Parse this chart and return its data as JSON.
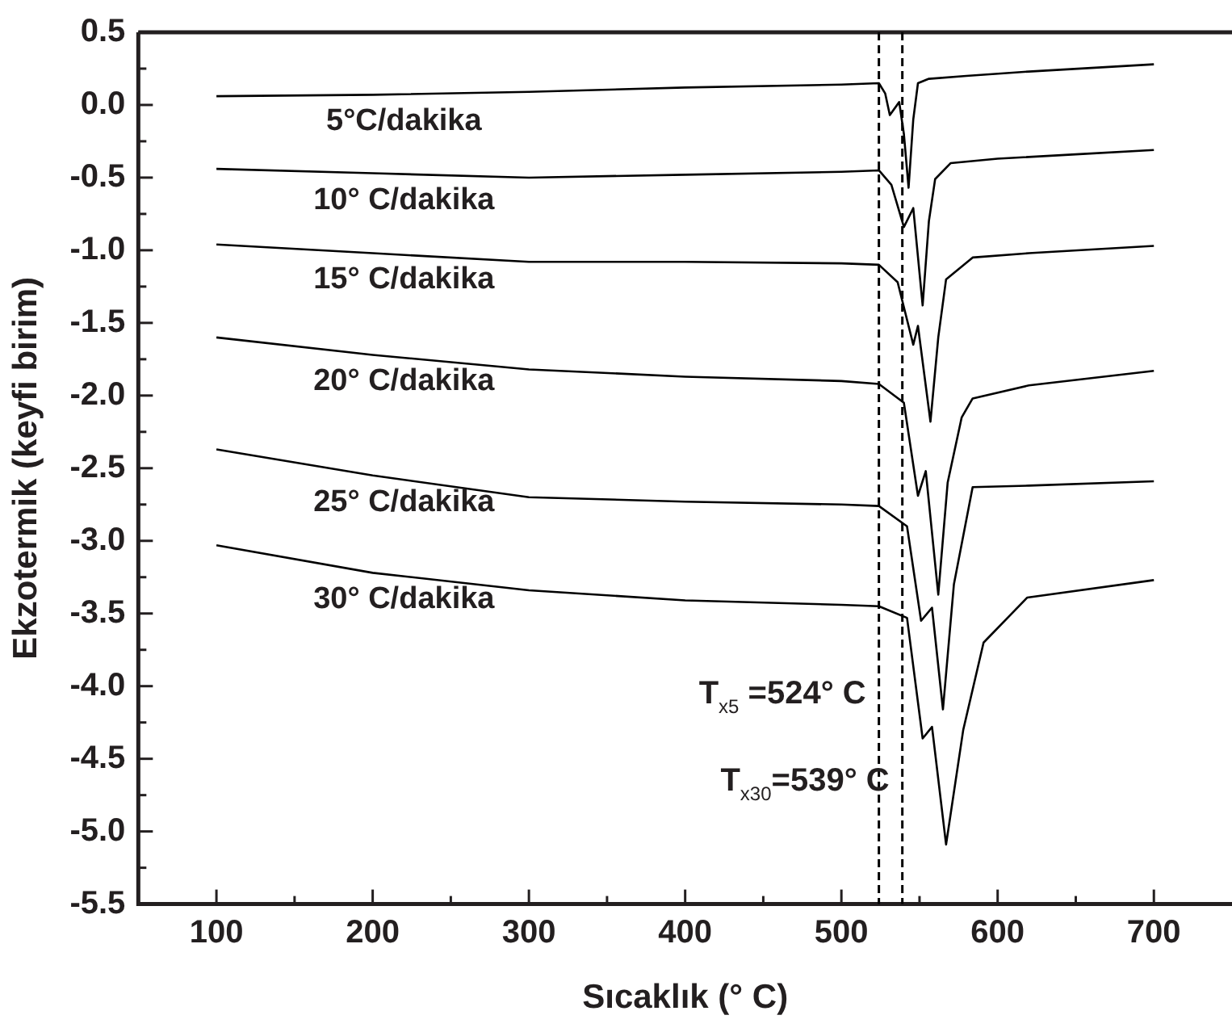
{
  "chart_data": {
    "type": "line",
    "xlabel": "Sıcaklık (° C)",
    "ylabel": "Ekzotermik (keyfi birim)",
    "xlim": [
      50,
      750
    ],
    "ylim": [
      -5.5,
      0.5
    ],
    "xticks": [
      100,
      {
        "value": 150,
        "label": null
      },
      200,
      {
        "value": 250,
        "label": null
      },
      300,
      {
        "value": 350,
        "label": null
      },
      400,
      {
        "value": 450,
        "label": null
      },
      500,
      {
        "value": 550,
        "label": null
      },
      600,
      {
        "value": 650,
        "label": null
      },
      700
    ],
    "yticks": [
      {
        "value": -5.5,
        "label": "-5.5"
      },
      {
        "value": -5.25,
        "label": null
      },
      {
        "value": -5,
        "label": "-5.0"
      },
      {
        "value": -4.75,
        "label": null
      },
      {
        "value": -4.5,
        "label": "-4.5"
      },
      {
        "value": -4.25,
        "label": null
      },
      {
        "value": -4,
        "label": "-4.0"
      },
      {
        "value": -3.75,
        "label": null
      },
      {
        "value": -3.5,
        "label": "-3.5"
      },
      {
        "value": -3.25,
        "label": null
      },
      {
        "value": -3,
        "label": "-3.0"
      },
      {
        "value": -2.75,
        "label": null
      },
      {
        "value": -2.5,
        "label": "-2.5"
      },
      {
        "value": -2.25,
        "label": null
      },
      {
        "value": -2,
        "label": "-2.0"
      },
      {
        "value": -1.75,
        "label": null
      },
      {
        "value": -1.5,
        "label": "-1.5"
      },
      {
        "value": -1.25,
        "label": null
      },
      {
        "value": -1,
        "label": "-1.0"
      },
      {
        "value": -0.75,
        "label": null
      },
      {
        "value": -0.5,
        "label": "-0.5"
      },
      {
        "value": -0.25,
        "label": null
      },
      {
        "value": 0,
        "label": "0.0"
      },
      {
        "value": 0.25,
        "label": null
      },
      {
        "value": 0.5,
        "label": "0.5"
      }
    ],
    "grid": false,
    "legend": false,
    "marker": "none",
    "line_style": "solid",
    "series": [
      {
        "name": "5°C/dakika",
        "color": "#000000",
        "x": [
          100,
          200,
          300,
          400,
          500,
          524,
          528,
          531,
          537,
          540,
          543,
          546,
          549,
          556,
          580,
          620,
          700
        ],
        "values": [
          0.06,
          0.07,
          0.09,
          0.12,
          0.14,
          0.15,
          0.08,
          -0.07,
          0.02,
          -0.2,
          -0.57,
          -0.1,
          0.15,
          0.18,
          0.2,
          0.23,
          0.28
        ]
      },
      {
        "name": "10° C/dakika",
        "color": "#000000",
        "x": [
          100,
          200,
          300,
          400,
          500,
          524,
          532,
          540,
          546,
          552,
          556,
          560,
          570,
          600,
          650,
          700
        ],
        "values": [
          -0.44,
          -0.47,
          -0.5,
          -0.48,
          -0.46,
          -0.45,
          -0.55,
          -0.84,
          -0.71,
          -1.38,
          -0.8,
          -0.51,
          -0.4,
          -0.37,
          -0.34,
          -0.31
        ]
      },
      {
        "name": "15° C/dakika",
        "color": "#000000",
        "x": [
          100,
          200,
          300,
          400,
          500,
          524,
          536,
          546,
          549,
          557,
          562,
          567,
          584,
          620,
          700
        ],
        "values": [
          -0.96,
          -1.02,
          -1.08,
          -1.08,
          -1.09,
          -1.1,
          -1.22,
          -1.65,
          -1.52,
          -2.18,
          -1.6,
          -1.2,
          -1.05,
          -1.02,
          -0.97
        ]
      },
      {
        "name": "20° C/dakika",
        "color": "#000000",
        "x": [
          100,
          200,
          300,
          400,
          500,
          524,
          540,
          549,
          554,
          562,
          568,
          577,
          584,
          620,
          700
        ],
        "values": [
          -1.6,
          -1.72,
          -1.82,
          -1.87,
          -1.9,
          -1.92,
          -2.05,
          -2.69,
          -2.52,
          -3.37,
          -2.6,
          -2.15,
          -2.02,
          -1.93,
          -1.83
        ]
      },
      {
        "name": "25° C/dakika",
        "color": "#000000",
        "x": [
          100,
          200,
          300,
          400,
          500,
          524,
          542,
          551,
          558,
          565,
          572,
          584,
          620,
          700
        ],
        "values": [
          -2.37,
          -2.55,
          -2.7,
          -2.73,
          -2.75,
          -2.76,
          -2.9,
          -3.55,
          -3.46,
          -4.16,
          -3.3,
          -2.63,
          -2.62,
          -2.59
        ]
      },
      {
        "name": "30° C/dakika",
        "color": "#000000",
        "x": [
          100,
          200,
          300,
          400,
          500,
          524,
          542,
          552,
          558,
          567,
          578,
          591,
          619,
          700
        ],
        "values": [
          -3.03,
          -3.22,
          -3.34,
          -3.41,
          -3.44,
          -3.45,
          -3.53,
          -4.36,
          -4.28,
          -5.09,
          -4.3,
          -3.7,
          -3.39,
          -3.27
        ]
      }
    ],
    "ref_lines": [
      {
        "axis": "x",
        "value": 524,
        "label": "T$_{x5}$ =524° C",
        "line_style": "dashed",
        "color": "#000000"
      },
      {
        "axis": "x",
        "value": 539,
        "label": "T$_{x30}$=539° C",
        "line_style": "dashed",
        "color": "#000000"
      }
    ]
  }
}
